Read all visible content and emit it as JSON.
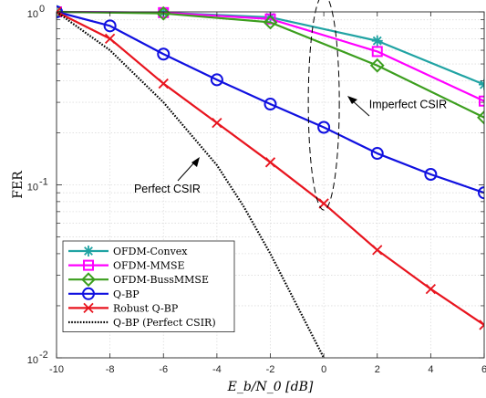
{
  "chart_data": {
    "type": "line",
    "xlabel": "E_b/N_0 [dB]",
    "ylabel": "FER",
    "x_axis": {
      "range": [
        -10,
        6
      ],
      "ticks": [
        -10,
        -8,
        -6,
        -4,
        -2,
        0,
        2,
        4,
        6
      ],
      "tick_labels": [
        "-10",
        "-8",
        "-6",
        "-4",
        "-2",
        "0",
        "2",
        "4",
        "6"
      ]
    },
    "y_axis": {
      "scale": "log",
      "range": [
        0.01,
        1
      ],
      "ticks": [
        0.01,
        0.1,
        1
      ],
      "tick_labels": [
        "10",
        "10",
        "10"
      ],
      "tick_exponents": [
        "-2",
        "-1",
        "0"
      ]
    },
    "grid": true,
    "legend_position": "bottom-left",
    "series": [
      {
        "name": "OFDM-Convex",
        "color": "#20A3A3",
        "marker": "asterisk",
        "linestyle": "solid",
        "x": [
          -10,
          -6,
          -2,
          2,
          6
        ],
        "y": [
          1.0,
          0.99,
          0.93,
          0.68,
          0.38
        ]
      },
      {
        "name": "OFDM-MMSE",
        "color": "#FF00FF",
        "marker": "square",
        "linestyle": "solid",
        "x": [
          -10,
          -6,
          -2,
          2,
          6
        ],
        "y": [
          1.0,
          0.99,
          0.91,
          0.59,
          0.305
        ]
      },
      {
        "name": "OFDM-BussMMSE",
        "color": "#3C9E1E",
        "marker": "diamond",
        "linestyle": "solid",
        "x": [
          -10,
          -6,
          -2,
          2,
          6
        ],
        "y": [
          1.0,
          0.98,
          0.87,
          0.49,
          0.245
        ]
      },
      {
        "name": "Q-BP",
        "color": "#1010E0",
        "marker": "circle",
        "linestyle": "solid",
        "x": [
          -10,
          -8,
          -6,
          -4,
          -2,
          0,
          2,
          4,
          6
        ],
        "y": [
          1.0,
          0.83,
          0.57,
          0.405,
          0.293,
          0.215,
          0.152,
          0.115,
          0.09
        ]
      },
      {
        "name": "Robust Q-BP",
        "color": "#E8141E",
        "marker": "x",
        "linestyle": "solid",
        "x": [
          -10,
          -8,
          -6,
          -4,
          -2,
          0,
          2,
          4,
          6
        ],
        "y": [
          1.0,
          0.7,
          0.385,
          0.228,
          0.135,
          0.078,
          0.042,
          0.025,
          0.0155
        ]
      },
      {
        "name": "Q-BP (Perfect CSIR)",
        "color": "#000000",
        "marker": "none",
        "linestyle": "dotted",
        "x": [
          -10,
          -8,
          -6,
          -4,
          -3,
          -2,
          -1,
          0
        ],
        "y": [
          1.0,
          0.6,
          0.3,
          0.13,
          0.075,
          0.04,
          0.02,
          0.01
        ]
      }
    ],
    "annotations": [
      {
        "text": "Imperfect CSIR",
        "x": 2.0,
        "y": 0.215
      },
      {
        "text": "Perfect CSIR",
        "x": -7.0,
        "y": 0.098
      }
    ]
  }
}
